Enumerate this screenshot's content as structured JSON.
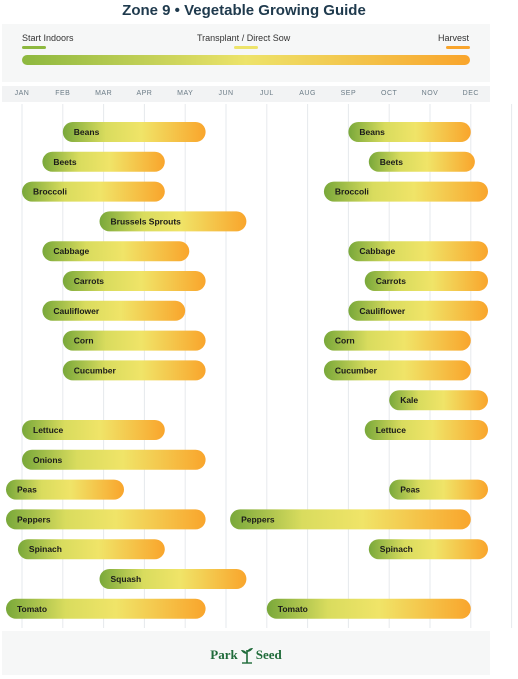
{
  "title": "Zone 9  •  Vegetable Growing Guide",
  "legend": {
    "start_label": "Start Indoors",
    "transplant_label": "Transplant / Direct Sow",
    "harvest_label": "Harvest"
  },
  "colors": {
    "start": "#8db83f",
    "transplant": "#ede36a",
    "harvest": "#f9a52c",
    "title": "#1f3a4d",
    "logo": "#1f6b3a"
  },
  "footer": {
    "logo_part1": "Park",
    "logo_part2": "Seed"
  },
  "chart_data": {
    "type": "bar",
    "orientation": "horizontal-range",
    "title": "Zone 9  •  Vegetable Growing Guide",
    "x_categories": [
      "JAN",
      "FEB",
      "MAR",
      "APR",
      "MAY",
      "JUN",
      "JUL",
      "AUG",
      "SEP",
      "OCT",
      "NOV",
      "DEC"
    ],
    "xlim": [
      0,
      12
    ],
    "grid": true,
    "legend_placement": "top",
    "rows": [
      {
        "label": "Beans",
        "bars": [
          [
            1.0,
            4.5
          ],
          [
            8.0,
            11.0
          ]
        ]
      },
      {
        "label": "Beets",
        "bars": [
          [
            0.5,
            3.5
          ],
          [
            8.5,
            11.1
          ]
        ]
      },
      {
        "label": "Broccoli",
        "bars": [
          [
            0.0,
            3.5
          ],
          [
            7.4,
            11.5
          ]
        ]
      },
      {
        "label": "Brussels Sprouts",
        "bars": [
          [
            1.9,
            5.5
          ]
        ]
      },
      {
        "label": "Cabbage",
        "bars": [
          [
            0.5,
            4.1
          ],
          [
            8.0,
            11.5
          ]
        ]
      },
      {
        "label": "Carrots",
        "bars": [
          [
            1.0,
            4.5
          ],
          [
            8.4,
            11.5
          ]
        ]
      },
      {
        "label": "Cauliflower",
        "bars": [
          [
            0.5,
            4.0
          ],
          [
            8.0,
            11.5
          ]
        ]
      },
      {
        "label": "Corn",
        "bars": [
          [
            1.0,
            4.5
          ],
          [
            7.4,
            11.0
          ]
        ]
      },
      {
        "label": "Cucumber",
        "bars": [
          [
            1.0,
            4.5
          ],
          [
            7.4,
            11.0
          ]
        ]
      },
      {
        "label": "Kale",
        "bars": [
          [
            9.0,
            11.9
          ]
        ]
      },
      {
        "label": "Lettuce",
        "bars": [
          [
            0.0,
            3.5
          ],
          [
            8.4,
            11.5
          ]
        ]
      },
      {
        "label": "Onions",
        "bars": [
          [
            0.0,
            4.5
          ]
        ]
      },
      {
        "label": "Peas",
        "bars": [
          [
            -0.4,
            2.5
          ],
          [
            9.0,
            11.5
          ]
        ]
      },
      {
        "label": "Peppers",
        "bars": [
          [
            -0.4,
            4.5
          ],
          [
            5.1,
            11.0
          ]
        ]
      },
      {
        "label": "Spinach",
        "bars": [
          [
            -0.1,
            3.5
          ],
          [
            8.5,
            11.5
          ]
        ]
      },
      {
        "label": "Squash",
        "bars": [
          [
            1.9,
            5.5
          ]
        ]
      },
      {
        "label": "Tomato",
        "bars": [
          [
            -0.4,
            4.5
          ],
          [
            6.0,
            11.0
          ]
        ]
      }
    ]
  }
}
